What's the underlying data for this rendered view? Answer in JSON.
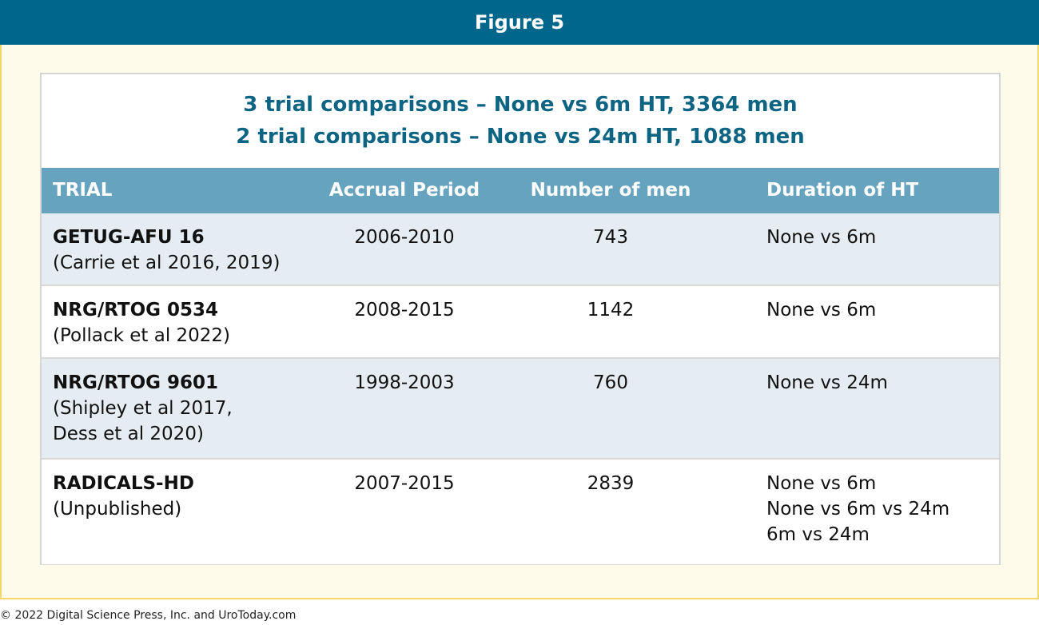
{
  "figure": {
    "title": "Figure 5",
    "subtitle_lines": [
      "3 trial comparisons – None vs 6m HT, 3364 men",
      "2 trial comparisons – None vs 24m HT, 1088 men"
    ]
  },
  "table": {
    "headers": [
      "TRIAL",
      "Accrual Period",
      "Number of men",
      "Duration of HT"
    ],
    "rows": [
      {
        "trial": "GETUG-AFU 16",
        "reference": "(Carrie et al 2016, 2019)",
        "accrual": "2006-2010",
        "men": "743",
        "duration": [
          "None vs 6m"
        ]
      },
      {
        "trial": "NRG/RTOG 0534",
        "reference": "(Pollack et al 2022)",
        "accrual": "2008-2015",
        "men": "1142",
        "duration": [
          "None vs 6m"
        ]
      },
      {
        "trial": "NRG/RTOG 9601",
        "reference": "(Shipley et al 2017,\nDess et al 2020)",
        "accrual": "1998-2003",
        "men": "760",
        "duration": [
          "None vs 24m"
        ]
      },
      {
        "trial": "RADICALS-HD",
        "reference": "(Unpublished)",
        "accrual": "2007-2015",
        "men": "2839",
        "duration": [
          "None vs 6m",
          "None vs 6m vs 24m",
          "6m vs 24m"
        ]
      }
    ]
  },
  "footer": {
    "copyright": "© 2022 Digital Science Press, Inc. and UroToday.com"
  },
  "colors": {
    "header_bar": "#00668c",
    "subtitle": "#0e6483",
    "table_header": "#66a3bf",
    "row_shade": "#e5edf2",
    "frame_fill": "#fffbeb",
    "frame_border": "#f5d76e"
  }
}
